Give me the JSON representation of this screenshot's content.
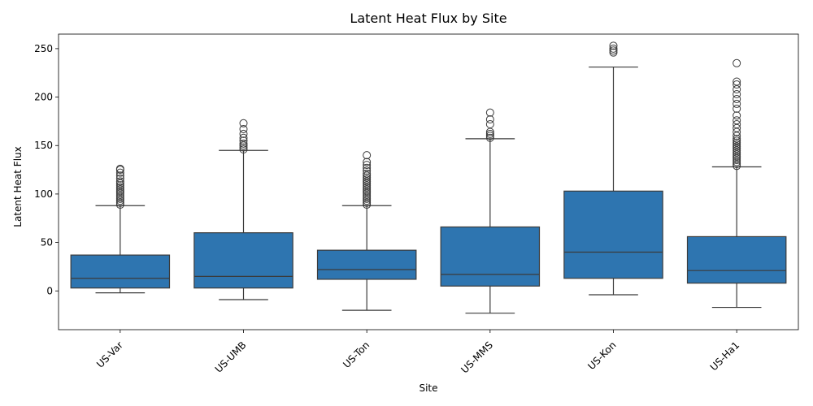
{
  "chart_data": {
    "type": "box",
    "title": "Latent Heat Flux by Site",
    "xlabel": "Site",
    "ylabel": "Latent Heat Flux",
    "ylim": [
      -40,
      265
    ],
    "yticks": [
      0,
      50,
      100,
      150,
      200,
      250
    ],
    "box_color": "#2e75b0",
    "categories": [
      "US-Var",
      "US-UMB",
      "US-Ton",
      "US-MMS",
      "US-Kon",
      "US-Ha1"
    ],
    "boxes": [
      {
        "site": "US-Var",
        "whisker_low": -2,
        "q1": 3,
        "median": 13,
        "q3": 37,
        "whisker_high": 88,
        "outliers": [
          89,
          91,
          93,
          95,
          97,
          99,
          101,
          103,
          105,
          107,
          109,
          111,
          113,
          116,
          119,
          122,
          125,
          126
        ]
      },
      {
        "site": "US-UMB",
        "whisker_low": -9,
        "q1": 3,
        "median": 15,
        "q3": 60,
        "whisker_high": 145,
        "outliers": [
          146,
          148,
          150,
          152,
          155,
          158,
          162,
          167,
          173
        ]
      },
      {
        "site": "US-Ton",
        "whisker_low": -20,
        "q1": 12,
        "median": 22,
        "q3": 42,
        "whisker_high": 88,
        "outliers": [
          89,
          91,
          93,
          95,
          97,
          99,
          101,
          103,
          105,
          107,
          109,
          111,
          113,
          115,
          117,
          119,
          121,
          124,
          127,
          130,
          133,
          140
        ]
      },
      {
        "site": "US-MMS",
        "whisker_low": -23,
        "q1": 5,
        "median": 17,
        "q3": 66,
        "whisker_high": 157,
        "outliers": [
          158,
          160,
          162,
          164,
          172,
          177,
          184
        ]
      },
      {
        "site": "US-Kon",
        "whisker_low": -4,
        "q1": 13,
        "median": 40,
        "q3": 103,
        "whisker_high": 231,
        "outliers": [
          246,
          248,
          250,
          253
        ]
      },
      {
        "site": "US-Ha1",
        "whisker_low": -17,
        "q1": 8,
        "median": 21,
        "q3": 56,
        "whisker_high": 128,
        "outliers": [
          129,
          131,
          133,
          135,
          137,
          139,
          141,
          143,
          145,
          147,
          149,
          151,
          153,
          155,
          157,
          160,
          164,
          168,
          172,
          176,
          181,
          188,
          193,
          198,
          203,
          208,
          213,
          216,
          235
        ]
      }
    ]
  }
}
